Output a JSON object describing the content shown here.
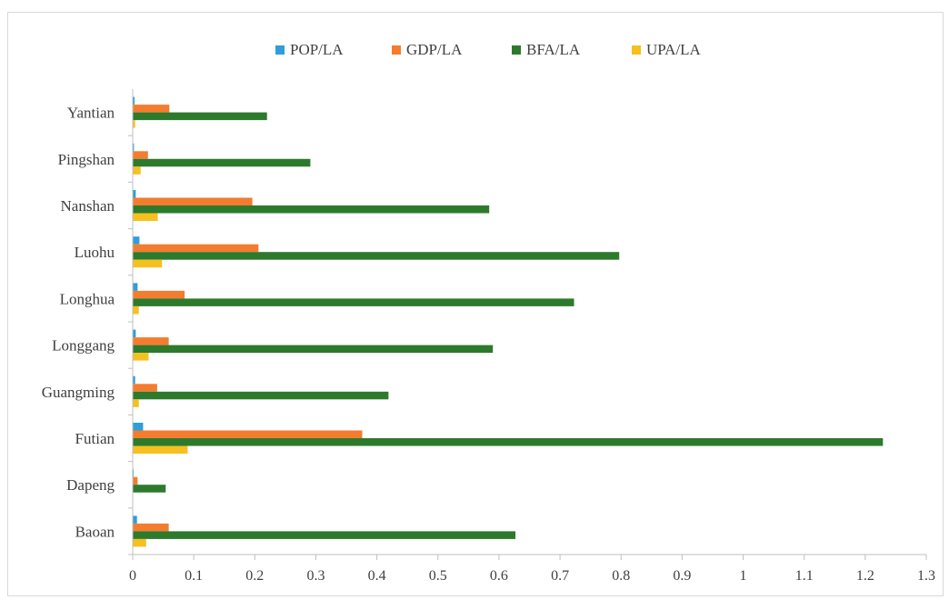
{
  "chart_data": {
    "type": "bar",
    "orientation": "horizontal",
    "categories": [
      "Baoan",
      "Dapeng",
      "Futian",
      "Guangming",
      "Longgang",
      "Longhua",
      "Luohu",
      "Nanshan",
      "Pingshan",
      "Yantian"
    ],
    "series": [
      {
        "name": "POP/LA",
        "color": "#2e9fd8",
        "values": [
          0.007,
          0.0015,
          0.017,
          0.004,
          0.005,
          0.008,
          0.011,
          0.005,
          0.002,
          0.003
        ]
      },
      {
        "name": "GDP/LA",
        "color": "#f47c2f",
        "values": [
          0.059,
          0.008,
          0.376,
          0.04,
          0.059,
          0.085,
          0.206,
          0.196,
          0.025,
          0.06
        ]
      },
      {
        "name": "BFA/LA",
        "color": "#2d7a2d",
        "values": [
          0.627,
          0.054,
          1.229,
          0.419,
          0.59,
          0.723,
          0.797,
          0.584,
          0.291,
          0.22
        ]
      },
      {
        "name": "UPA/LA",
        "color": "#f6c01f",
        "values": [
          0.022,
          0.0,
          0.09,
          0.01,
          0.026,
          0.01,
          0.048,
          0.041,
          0.013,
          0.004
        ]
      }
    ],
    "xlim": [
      0,
      1.3
    ],
    "xticks": [
      "0",
      "0.1",
      "0.2",
      "0.3",
      "0.4",
      "0.5",
      "0.6",
      "0.7",
      "0.8",
      "0.9",
      "1",
      "1.1",
      "1.2",
      "1.3"
    ],
    "xlabel": "",
    "ylabel": "",
    "title": "",
    "legend_position": "top",
    "grid": false
  }
}
